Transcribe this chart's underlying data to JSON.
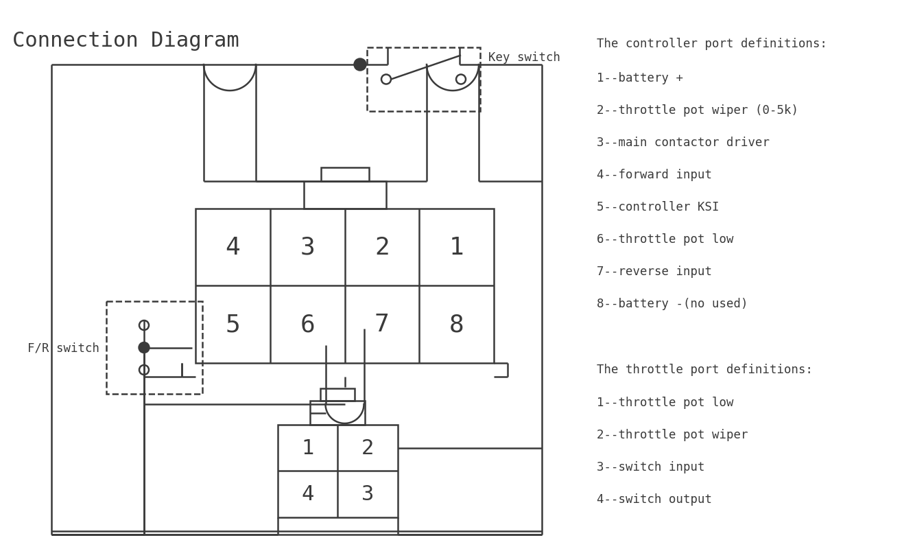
{
  "title": "Connection Diagram",
  "bg_color": "#ffffff",
  "line_color": "#3a3a3a",
  "controller_port_title": "The controller port definitions:",
  "controller_port_defs": [
    "1--battery +",
    "2--throttle pot wiper (0-5k)",
    "3--main contactor driver",
    "4--forward input",
    "5--controller KSI",
    "6--throttle pot low",
    "7--reverse input",
    "8--battery -(no used)"
  ],
  "throttle_port_title": "The throttle port definitions:",
  "throttle_port_defs": [
    "1--throttle pot low",
    "2--throttle pot wiper",
    "3--switch input",
    "4--switch output"
  ],
  "key_switch_label": "Key switch",
  "fr_switch_label": "F/R switch",
  "ctrl_connector_labels_top": [
    "4",
    "3",
    "2",
    "1"
  ],
  "ctrl_connector_labels_bot": [
    "5",
    "6",
    "7",
    "8"
  ]
}
